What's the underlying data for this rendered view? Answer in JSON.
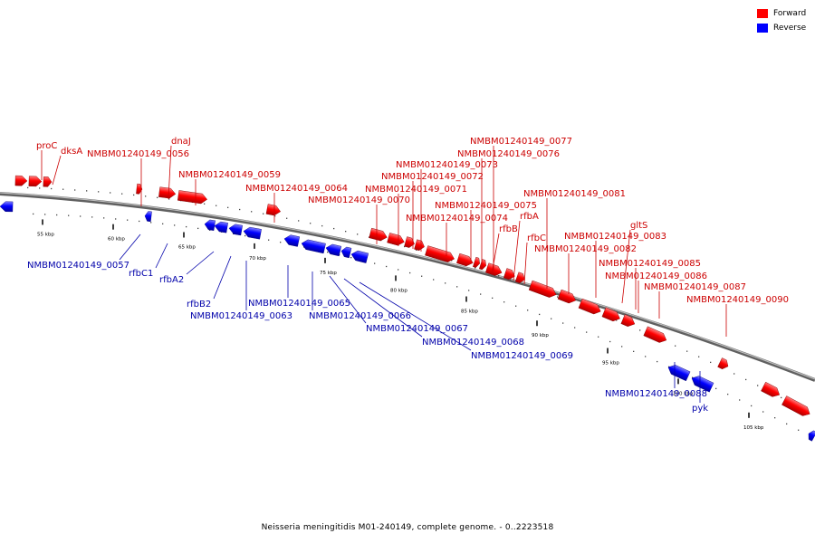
{
  "legend": {
    "items": [
      {
        "label": "Forward",
        "color": "#ff0000"
      },
      {
        "label": "Reverse",
        "color": "#0000ff"
      }
    ]
  },
  "caption": "Neisseria meningitidis M01-240149, complete genome. - 0..2223518",
  "colors": {
    "forward": "#ff0000",
    "reverse": "#0000ff",
    "backbone": "#808080",
    "forward_label": "#cc0000",
    "reverse_label": "#0000aa"
  },
  "scale_ticks": [
    {
      "kbp": 55,
      "label": "55 kbp"
    },
    {
      "kbp": 60,
      "label": "60 kbp"
    },
    {
      "kbp": 65,
      "label": "65 kbp"
    },
    {
      "kbp": 70,
      "label": "70 kbp"
    },
    {
      "kbp": 75,
      "label": "75 kbp"
    },
    {
      "kbp": 80,
      "label": "80 kbp"
    },
    {
      "kbp": 85,
      "label": "85 kbp"
    },
    {
      "kbp": 90,
      "label": "90 kbp"
    },
    {
      "kbp": 95,
      "label": "95 kbp"
    },
    {
      "kbp": 100,
      "label": "100 kbp"
    },
    {
      "kbp": 105,
      "label": "105 kbp"
    }
  ],
  "forward_labels": [
    "proC",
    "dksA",
    "dnaJ",
    "NMBM01240149_0056",
    "NMBM01240149_0059",
    "NMBM01240149_0064",
    "NMBM01240149_0070",
    "NMBM01240149_0071",
    "NMBM01240149_0072",
    "NMBM01240149_0073",
    "NMBM01240149_0074",
    "NMBM01240149_0075",
    "NMBM01240149_0076",
    "NMBM01240149_0077",
    "rfbB",
    "rfbA",
    "rfbC",
    "NMBM01240149_0081",
    "NMBM01240149_0082",
    "NMBM01240149_0083",
    "gltS",
    "NMBM01240149_0085",
    "NMBM01240149_0086",
    "NMBM01240149_0087",
    "NMBM01240149_0090"
  ],
  "reverse_labels": [
    "NMBM01240149_0057",
    "rfbC1",
    "rfbA2",
    "rfbB2",
    "NMBM01240149_0063",
    "NMBM01240149_0065",
    "NMBM01240149_0066",
    "NMBM01240149_0067",
    "NMBM01240149_0068",
    "NMBM01240149_0069",
    "NMBM01240149_0088",
    "pyk"
  ]
}
